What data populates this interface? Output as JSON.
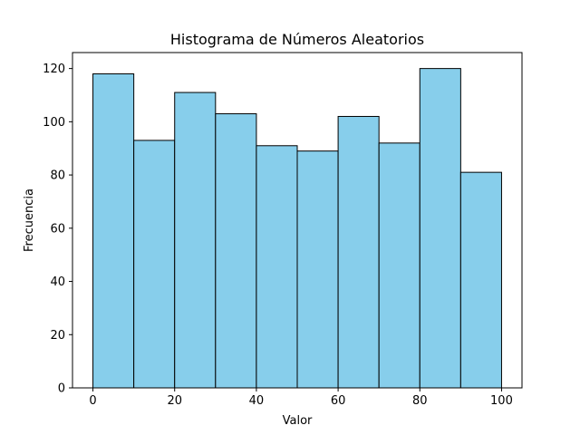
{
  "chart_data": {
    "type": "bar",
    "title": "Histograma de Números Aleatorios",
    "xlabel": "Valor",
    "ylabel": "Frecuencia",
    "bins": [
      {
        "start": 0,
        "end": 10,
        "count": 118
      },
      {
        "start": 10,
        "end": 20,
        "count": 93
      },
      {
        "start": 20,
        "end": 30,
        "count": 111
      },
      {
        "start": 30,
        "end": 40,
        "count": 103
      },
      {
        "start": 40,
        "end": 50,
        "count": 91
      },
      {
        "start": 50,
        "end": 60,
        "count": 89
      },
      {
        "start": 60,
        "end": 70,
        "count": 102
      },
      {
        "start": 70,
        "end": 80,
        "count": 92
      },
      {
        "start": 80,
        "end": 90,
        "count": 120
      },
      {
        "start": 90,
        "end": 100,
        "count": 81
      }
    ],
    "xlim": [
      -5,
      105
    ],
    "ylim": [
      0,
      126
    ],
    "x_ticks": [
      "0",
      "20",
      "40",
      "60",
      "80",
      "100"
    ],
    "y_ticks": [
      "0",
      "20",
      "40",
      "60",
      "80",
      "100",
      "120"
    ],
    "grid": false,
    "colors": {
      "bar_fill": "#87CEEB",
      "bar_edge": "#000000"
    }
  }
}
